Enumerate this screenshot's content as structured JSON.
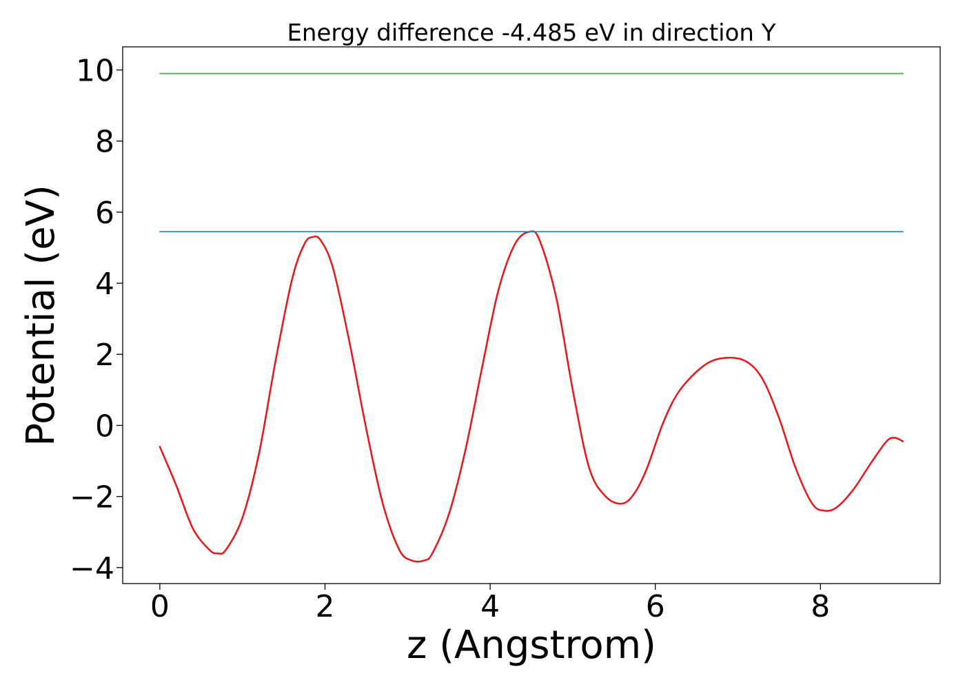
{
  "chart_data": {
    "type": "line",
    "title": "Energy difference -4.485 eV in direction Y",
    "xlabel": "z (Angstrom)",
    "ylabel": "Potential (eV)",
    "xlim": [
      -0.45,
      9.45
    ],
    "ylim": [
      -4.45,
      10.65
    ],
    "xticks": [
      0,
      2,
      4,
      6,
      8
    ],
    "xtick_labels": [
      "0",
      "2",
      "4",
      "6",
      "8"
    ],
    "yticks": [
      -4,
      -2,
      0,
      2,
      4,
      6,
      8,
      10
    ],
    "ytick_labels": [
      "−4",
      "−2",
      "0",
      "2",
      "4",
      "6",
      "8",
      "10"
    ],
    "grid": false,
    "legend": "none",
    "series": [
      {
        "color": "#e41a1c",
        "x": [
          0.0,
          0.2,
          0.4,
          0.6,
          0.7,
          0.8,
          1.0,
          1.2,
          1.4,
          1.6,
          1.75,
          1.85,
          1.95,
          2.1,
          2.3,
          2.5,
          2.7,
          2.9,
          3.05,
          3.2,
          3.3,
          3.5,
          3.7,
          3.9,
          4.1,
          4.3,
          4.48,
          4.6,
          4.8,
          5.0,
          5.2,
          5.4,
          5.6,
          5.75,
          5.9,
          6.1,
          6.3,
          6.6,
          6.85,
          7.1,
          7.3,
          7.5,
          7.7,
          7.9,
          8.05,
          8.2,
          8.4,
          8.6,
          8.8,
          8.9,
          9.0
        ],
        "y": [
          -0.6,
          -1.7,
          -2.9,
          -3.5,
          -3.6,
          -3.5,
          -2.6,
          -0.8,
          1.8,
          4.1,
          5.1,
          5.3,
          5.2,
          4.4,
          2.3,
          -0.1,
          -2.2,
          -3.5,
          -3.8,
          -3.8,
          -3.6,
          -2.5,
          -0.7,
          1.6,
          3.8,
          5.1,
          5.45,
          5.2,
          3.6,
          1.0,
          -1.2,
          -2.0,
          -2.2,
          -1.9,
          -1.2,
          0.1,
          1.0,
          1.7,
          1.9,
          1.8,
          1.3,
          0.2,
          -1.2,
          -2.2,
          -2.4,
          -2.3,
          -1.8,
          -1.1,
          -0.45,
          -0.35,
          -0.45
        ]
      },
      {
        "color": "#377eb8",
        "x": [
          0.0,
          9.0
        ],
        "y": [
          5.45,
          5.45
        ]
      },
      {
        "color": "#4daf4a",
        "x": [
          0.0,
          9.0
        ],
        "y": [
          9.9,
          9.9
        ]
      }
    ]
  }
}
